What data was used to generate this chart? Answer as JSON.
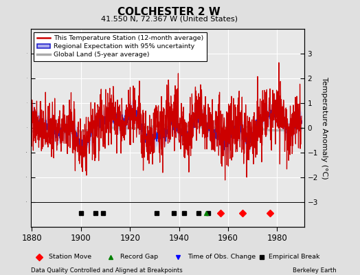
{
  "title": "COLCHESTER 2 W",
  "subtitle": "41.550 N, 72.367 W (United States)",
  "ylabel": "Temperature Anomaly (°C)",
  "xlabel_left": "Data Quality Controlled and Aligned at Breakpoints",
  "xlabel_right": "Berkeley Earth",
  "year_start": 1880,
  "year_end": 1990,
  "ylim": [
    -4,
    4
  ],
  "yticks": [
    -3,
    -2,
    -1,
    0,
    1,
    2,
    3
  ],
  "xticks": [
    1880,
    1900,
    1920,
    1940,
    1960,
    1980
  ],
  "bg_color": "#e0e0e0",
  "plot_bg_color": "#e8e8e8",
  "grid_color": "#ffffff",
  "legend_entries": [
    "This Temperature Station (12-month average)",
    "Regional Expectation with 95% uncertainty",
    "Global Land (5-year average)"
  ],
  "station_moves": [
    1957,
    1966,
    1977
  ],
  "record_gaps": [
    1951
  ],
  "obs_changes": [],
  "empirical_breaks": [
    1900,
    1906,
    1909,
    1931,
    1938,
    1942,
    1948,
    1952
  ],
  "red_line_color": "#cc0000",
  "blue_line_color": "#2222cc",
  "blue_fill_color": "#aaaaee",
  "gray_line_color": "#aaaaaa",
  "marker_strip_ylim": [
    -3.8,
    -2.8
  ]
}
